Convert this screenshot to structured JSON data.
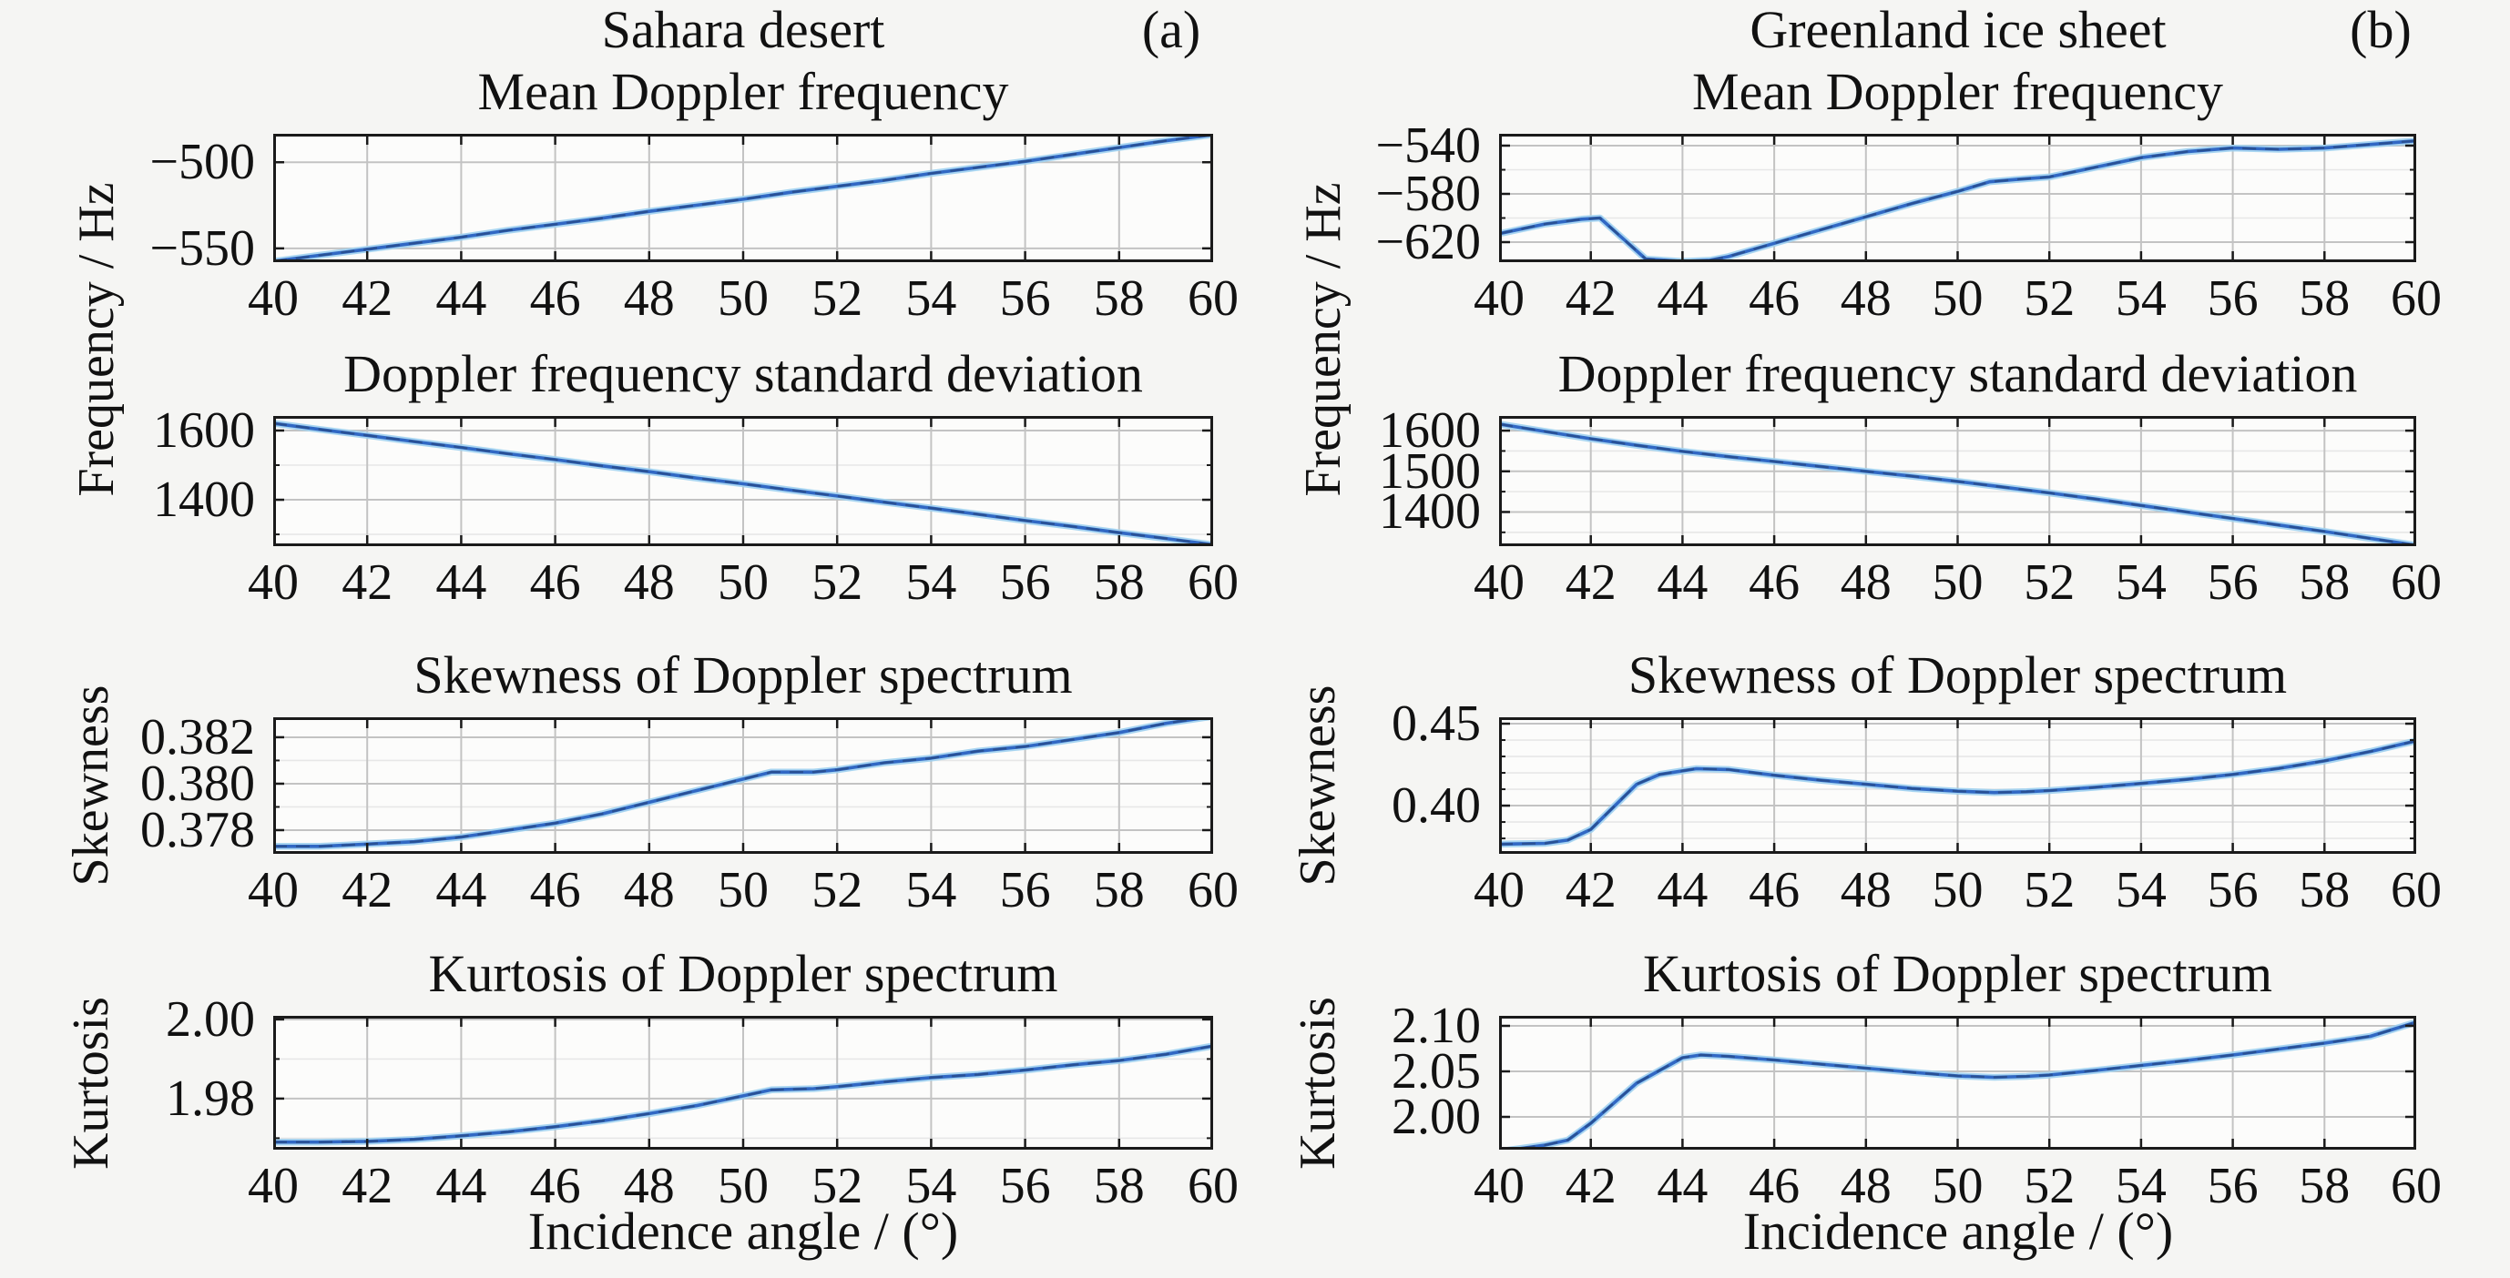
{
  "figure": {
    "background": "#f5f5f3",
    "plot_background": "#fcfcfb",
    "border_color": "#1a1a1a",
    "grid_color": "#c3c3c3",
    "minor_grid_color": "#e7e7e7",
    "line_color": "#3168c4",
    "line_halo_color": "#9fd0f0",
    "line_dash_color": "#223a63",
    "text_color": "#111111",
    "columns": [
      {
        "title": "Sahara desert",
        "tag": "(a)",
        "xlabel": "Incidence angle / (°)",
        "ylabel_frequency": "Frequency / Hz",
        "ylabel_skewness": "Skewness",
        "ylabel_kurtosis": "Kurtosis"
      },
      {
        "title": "Greenland ice sheet",
        "tag": "(b)",
        "xlabel": "Incidence angle / (°)",
        "ylabel_frequency": "Frequency / Hz",
        "ylabel_skewness": "Skewness",
        "ylabel_kurtosis": "Kurtosis"
      }
    ]
  },
  "chart_data": [
    {
      "type": "line",
      "column": 0,
      "row": 0,
      "title": "Mean Doppler frequency",
      "grid": true,
      "legend": null,
      "xlim": [
        40,
        60
      ],
      "xticks": [
        40,
        42,
        44,
        46,
        48,
        50,
        52,
        54,
        56,
        58,
        60
      ],
      "xtick_labels": [
        "40",
        "42",
        "44",
        "46",
        "48",
        "50",
        "52",
        "54",
        "56",
        "58",
        "60"
      ],
      "ylim": [
        -558,
        -483.5
      ],
      "yticks": [
        -500,
        -550
      ],
      "ytick_labels": [
        "−500",
        "−550"
      ],
      "minor_yticks": [],
      "x": [
        40,
        41,
        42,
        43,
        44,
        45,
        46,
        47,
        48,
        49,
        50,
        51,
        52,
        53,
        54,
        55,
        56,
        57,
        58,
        59,
        60
      ],
      "y": [
        -557.5,
        -554,
        -550.5,
        -547,
        -543.5,
        -539.5,
        -536,
        -532.5,
        -528.5,
        -525,
        -521.5,
        -517.5,
        -514,
        -510.5,
        -506.5,
        -503,
        -499.5,
        -495.5,
        -491.5,
        -487.5,
        -484
      ]
    },
    {
      "type": "line",
      "column": 0,
      "row": 1,
      "title": "Doppler frequency standard deviation",
      "grid": true,
      "legend": null,
      "xlim": [
        40,
        60
      ],
      "xticks": [
        40,
        42,
        44,
        46,
        48,
        50,
        52,
        54,
        56,
        58,
        60
      ],
      "xtick_labels": [
        "40",
        "42",
        "44",
        "46",
        "48",
        "50",
        "52",
        "54",
        "56",
        "58",
        "60"
      ],
      "ylim": [
        1266,
        1642
      ],
      "yticks": [
        1600,
        1400
      ],
      "ytick_labels": [
        "1600",
        "1400"
      ],
      "minor_yticks": [
        1500,
        1300
      ],
      "x": [
        40,
        41,
        42,
        43,
        44,
        45,
        46,
        47,
        48,
        49,
        50,
        51,
        52,
        53,
        54,
        55,
        56,
        57,
        58,
        59,
        60
      ],
      "y": [
        1621,
        1603,
        1586,
        1568,
        1551,
        1533,
        1516,
        1498,
        1481,
        1463,
        1446,
        1428,
        1411,
        1393,
        1376,
        1358,
        1340,
        1323,
        1305,
        1288,
        1270
      ]
    },
    {
      "type": "line",
      "column": 0,
      "row": 2,
      "title": "Skewness of Doppler spectrum",
      "grid": true,
      "legend": null,
      "xlim": [
        40,
        60
      ],
      "xticks": [
        40,
        42,
        44,
        46,
        48,
        50,
        52,
        54,
        56,
        58,
        60
      ],
      "xtick_labels": [
        "40",
        "42",
        "44",
        "46",
        "48",
        "50",
        "52",
        "54",
        "56",
        "58",
        "60"
      ],
      "ylim": [
        0.37698,
        0.38286
      ],
      "yticks": [
        0.382,
        0.38,
        0.378
      ],
      "ytick_labels": [
        "0.382",
        "0.380",
        "0.378"
      ],
      "minor_yticks": [
        0.379,
        0.381
      ],
      "x": [
        40,
        41,
        42,
        43,
        44,
        45,
        46,
        47,
        48,
        49,
        50,
        50.6,
        51.5,
        52,
        53,
        54,
        55,
        56,
        57,
        58,
        59,
        60
      ],
      "y": [
        0.3773,
        0.3773,
        0.3774,
        0.3775,
        0.3777,
        0.378,
        0.3783,
        0.3787,
        0.3792,
        0.3797,
        0.3802,
        0.3805,
        0.3805,
        0.3806,
        0.3809,
        0.3811,
        0.3814,
        0.3816,
        0.3819,
        0.3822,
        0.3826,
        0.3829
      ]
    },
    {
      "type": "line",
      "column": 0,
      "row": 3,
      "title": "Kurtosis of Doppler spectrum",
      "grid": true,
      "legend": null,
      "xlim": [
        40,
        60
      ],
      "xticks": [
        40,
        42,
        44,
        46,
        48,
        50,
        52,
        54,
        56,
        58,
        60
      ],
      "xtick_labels": [
        "40",
        "42",
        "44",
        "46",
        "48",
        "50",
        "52",
        "54",
        "56",
        "58",
        "60"
      ],
      "ylim": [
        1.9671,
        2.0009
      ],
      "yticks": [
        2.0,
        1.98
      ],
      "ytick_labels": [
        "2.00",
        "1.98"
      ],
      "minor_yticks": [
        1.97,
        1.99
      ],
      "x": [
        40,
        41,
        42,
        43,
        44,
        45,
        46,
        47,
        48,
        49,
        50,
        50.6,
        51.5,
        52,
        53,
        54,
        55,
        56,
        57,
        58,
        59,
        60
      ],
      "y": [
        1.969,
        1.969,
        1.9692,
        1.9697,
        1.9706,
        1.9716,
        1.9729,
        1.9744,
        1.9762,
        1.9782,
        1.9807,
        1.9822,
        1.9825,
        1.983,
        1.9842,
        1.9853,
        1.9861,
        1.9872,
        1.9885,
        1.9896,
        1.9912,
        1.9933
      ]
    },
    {
      "type": "line",
      "column": 1,
      "row": 0,
      "title": "Mean Doppler frequency",
      "grid": true,
      "legend": null,
      "xlim": [
        40,
        60
      ],
      "xticks": [
        40,
        42,
        44,
        46,
        48,
        50,
        52,
        54,
        56,
        58,
        60
      ],
      "xtick_labels": [
        "40",
        "42",
        "44",
        "46",
        "48",
        "50",
        "52",
        "54",
        "56",
        "58",
        "60"
      ],
      "ylim": [
        -636.6,
        -530.2
      ],
      "yticks": [
        -540,
        -580,
        -620
      ],
      "ytick_labels": [
        "−540",
        "−580",
        "−620"
      ],
      "minor_yticks": [
        -560,
        -600
      ],
      "x": [
        40,
        41,
        41.8,
        42.2,
        43.2,
        44,
        44.6,
        45,
        46,
        47,
        48,
        49,
        50,
        50.7,
        51.3,
        52,
        53,
        54,
        55,
        56,
        57,
        58,
        59,
        60
      ],
      "y": [
        -613,
        -605,
        -601,
        -600,
        -634,
        -636,
        -635,
        -632,
        -621,
        -610,
        -599,
        -588,
        -578,
        -570,
        -568,
        -566,
        -558,
        -550,
        -545,
        -542,
        -543,
        -542,
        -539,
        -536
      ]
    },
    {
      "type": "line",
      "column": 1,
      "row": 1,
      "title": "Doppler frequency standard deviation",
      "grid": true,
      "legend": null,
      "xlim": [
        40,
        60
      ],
      "xticks": [
        40,
        42,
        44,
        46,
        48,
        50,
        52,
        54,
        56,
        58,
        60
      ],
      "xtick_labels": [
        "40",
        "42",
        "44",
        "46",
        "48",
        "50",
        "52",
        "54",
        "56",
        "58",
        "60"
      ],
      "ylim": [
        1316,
        1636
      ],
      "yticks": [
        1600,
        1500,
        1400
      ],
      "ytick_labels": [
        "1600",
        "1500",
        "1400"
      ],
      "minor_yticks": [
        1550,
        1450,
        1350
      ],
      "x": [
        40,
        41,
        42,
        43,
        44,
        45,
        46,
        47,
        48,
        49,
        50,
        51,
        52,
        53,
        54,
        55,
        56,
        57,
        58,
        59,
        60
      ],
      "y": [
        1616,
        1598,
        1580,
        1564,
        1549,
        1536,
        1524,
        1512,
        1500,
        1488,
        1475,
        1461,
        1447,
        1432,
        1416,
        1400,
        1384,
        1368,
        1352,
        1335,
        1318
      ]
    },
    {
      "type": "line",
      "column": 1,
      "row": 2,
      "title": "Skewness of Doppler spectrum",
      "grid": true,
      "legend": null,
      "xlim": [
        40,
        60
      ],
      "xticks": [
        40,
        42,
        44,
        46,
        48,
        50,
        52,
        54,
        56,
        58,
        60
      ],
      "xtick_labels": [
        "40",
        "42",
        "44",
        "46",
        "48",
        "50",
        "52",
        "54",
        "56",
        "58",
        "60"
      ],
      "ylim": [
        0.3706,
        0.4539
      ],
      "yticks": [
        0.45,
        0.4
      ],
      "ytick_labels": [
        "0.45",
        "0.40"
      ],
      "minor_yticks": [
        0.38,
        0.39,
        0.41,
        0.42,
        0.43,
        0.44
      ],
      "x": [
        40,
        41,
        41.5,
        42,
        43,
        43.5,
        44.3,
        45,
        46,
        47,
        48,
        49,
        50,
        50.8,
        51.5,
        52,
        53,
        54,
        55,
        56,
        57,
        58,
        59,
        60
      ],
      "y": [
        0.3765,
        0.377,
        0.379,
        0.3855,
        0.413,
        0.419,
        0.4225,
        0.422,
        0.4185,
        0.4155,
        0.413,
        0.4105,
        0.4088,
        0.408,
        0.4085,
        0.4092,
        0.4112,
        0.4135,
        0.416,
        0.419,
        0.4227,
        0.4273,
        0.433,
        0.4395
      ]
    },
    {
      "type": "line",
      "column": 1,
      "row": 3,
      "title": "Kurtosis of Doppler spectrum",
      "grid": true,
      "legend": null,
      "xlim": [
        40,
        60
      ],
      "xticks": [
        40,
        42,
        44,
        46,
        48,
        50,
        52,
        54,
        56,
        58,
        60
      ],
      "xtick_labels": [
        "40",
        "42",
        "44",
        "46",
        "48",
        "50",
        "52",
        "54",
        "56",
        "58",
        "60"
      ],
      "ylim": [
        1.964,
        2.111
      ],
      "yticks": [
        2.1,
        2.05,
        2.0
      ],
      "ytick_labels": [
        "2.10",
        "2.05",
        "2.00"
      ],
      "minor_yticks": [],
      "x": [
        40,
        41,
        41.5,
        42,
        43,
        44,
        44.4,
        45,
        46,
        47,
        48,
        49,
        50,
        50.8,
        51.5,
        52,
        53,
        54,
        55,
        56,
        57,
        58,
        59,
        60
      ],
      "y": [
        1.962,
        1.969,
        1.9745,
        1.993,
        2.037,
        2.065,
        2.068,
        2.0665,
        2.0625,
        2.058,
        2.0535,
        2.049,
        2.045,
        2.0435,
        2.0445,
        2.046,
        2.051,
        2.0565,
        2.062,
        2.068,
        2.0745,
        2.081,
        2.0885,
        2.104
      ]
    }
  ]
}
